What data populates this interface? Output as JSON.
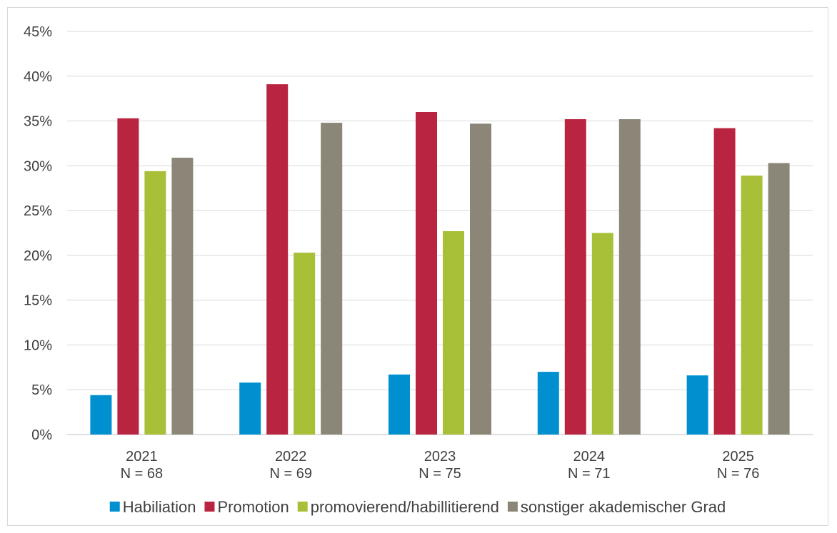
{
  "chart_data": {
    "type": "bar",
    "title": "",
    "xlabel": "",
    "ylabel": "",
    "categories": [
      "2021",
      "2022",
      "2023",
      "2024",
      "2025"
    ],
    "category_sublabels": [
      "N = 68",
      "N = 69",
      "N = 75",
      "N = 71",
      "N = 76"
    ],
    "ylim": [
      0,
      45
    ],
    "y_ticks": [
      0,
      5,
      10,
      15,
      20,
      25,
      30,
      35,
      40,
      45
    ],
    "y_tick_labels": [
      "0%",
      "5%",
      "10%",
      "15%",
      "20%",
      "25%",
      "30%",
      "35%",
      "40%",
      "45%"
    ],
    "grid": true,
    "legend_position": "bottom",
    "series": [
      {
        "name": "Habiliation",
        "color": "#0090d0",
        "values": [
          4.4,
          5.8,
          6.7,
          7.0,
          6.6
        ]
      },
      {
        "name": "Promotion",
        "color": "#b92541",
        "values": [
          35.3,
          39.1,
          36.0,
          35.2,
          34.2
        ]
      },
      {
        "name": "promovierend/habillitierend",
        "color": "#a8bf38",
        "values": [
          29.4,
          20.3,
          22.7,
          22.5,
          28.9
        ]
      },
      {
        "name": "sonstiger akademischer Grad",
        "color": "#8b8678",
        "values": [
          30.9,
          34.8,
          34.7,
          35.2,
          30.3
        ]
      }
    ]
  }
}
